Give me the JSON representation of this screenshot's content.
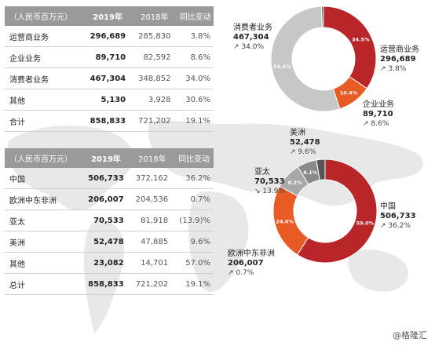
{
  "chart_data": [
    {
      "type": "table",
      "columns": [
        "（人民币百万元）",
        "2019年",
        "2018年",
        "同比变动"
      ],
      "rows": [
        [
          "运营商业务",
          "296,689",
          "285,830",
          "3.8%"
        ],
        [
          "企业业务",
          "89,710",
          "82,592",
          "8.6%"
        ],
        [
          "消费者业务",
          "467,304",
          "348,852",
          "34.0%"
        ],
        [
          "其他",
          "5,130",
          "3,928",
          "30.6%"
        ],
        [
          "合计",
          "858,833",
          "721,202",
          "19.1%"
        ]
      ]
    },
    {
      "type": "pie",
      "hole": true,
      "slices": [
        {
          "name": "运营商业务",
          "value": 296689,
          "pct_label": "34.5%",
          "value_label": "296,689",
          "growth": "3.8%",
          "trend": "up",
          "color": "#b8262a"
        },
        {
          "name": "企业业务",
          "value": 89710,
          "pct_label": "10.4%",
          "value_label": "89,710",
          "growth": "8.6%",
          "trend": "up",
          "color": "#e95b25"
        },
        {
          "name": "消费者业务",
          "value": 467304,
          "pct_label": "54.4%",
          "value_label": "467,304",
          "growth": "34.0%",
          "trend": "up",
          "color": "#c7c7c7"
        },
        {
          "name": "其他",
          "value": 5130,
          "pct_label": "",
          "value_label": "",
          "growth": "",
          "trend": "",
          "color": "#555555"
        }
      ]
    },
    {
      "type": "table",
      "columns": [
        "（人民币百万元）",
        "2019年",
        "2018年",
        "同比变动"
      ],
      "rows": [
        [
          "中国",
          "506,733",
          "372,162",
          "36.2%"
        ],
        [
          "欧洲中东非洲",
          "206,007",
          "204,536",
          "0.7%"
        ],
        [
          "亚太",
          "70,533",
          "81,918",
          "(13.9)%"
        ],
        [
          "美洲",
          "52,478",
          "47,885",
          "9.6%"
        ],
        [
          "其他",
          "23,082",
          "14,701",
          "57.0%"
        ],
        [
          "总计",
          "858,833",
          "721,202",
          "19.1%"
        ]
      ]
    },
    {
      "type": "pie",
      "hole": true,
      "slices": [
        {
          "name": "中国",
          "value": 506733,
          "pct_label": "59.0%",
          "value_label": "506,733",
          "growth": "36.2%",
          "trend": "up",
          "color": "#b8262a"
        },
        {
          "name": "欧洲中东非洲",
          "value": 206007,
          "pct_label": "24.0%",
          "value_label": "206,007",
          "growth": "0.7%",
          "trend": "up",
          "color": "#e95b25"
        },
        {
          "name": "亚太",
          "value": 70533,
          "pct_label": "8.2%",
          "value_label": "70,533",
          "growth": "13.9%",
          "trend": "down",
          "color": "#a8a8a8"
        },
        {
          "name": "美洲",
          "value": 52478,
          "pct_label": "6.1%",
          "value_label": "52,478",
          "growth": "9.6%",
          "trend": "up",
          "color": "#8a8a8a"
        },
        {
          "name": "其他",
          "value": 23082,
          "pct_label": "",
          "value_label": "",
          "growth": "",
          "trend": "",
          "color": "#555555"
        }
      ]
    }
  ],
  "watermark": "格隆汇",
  "colors": {
    "header_bg": "#9a9a9a",
    "map": "#e6e6e6",
    "accent_red": "#b8262a",
    "accent_orange": "#e95b25"
  }
}
